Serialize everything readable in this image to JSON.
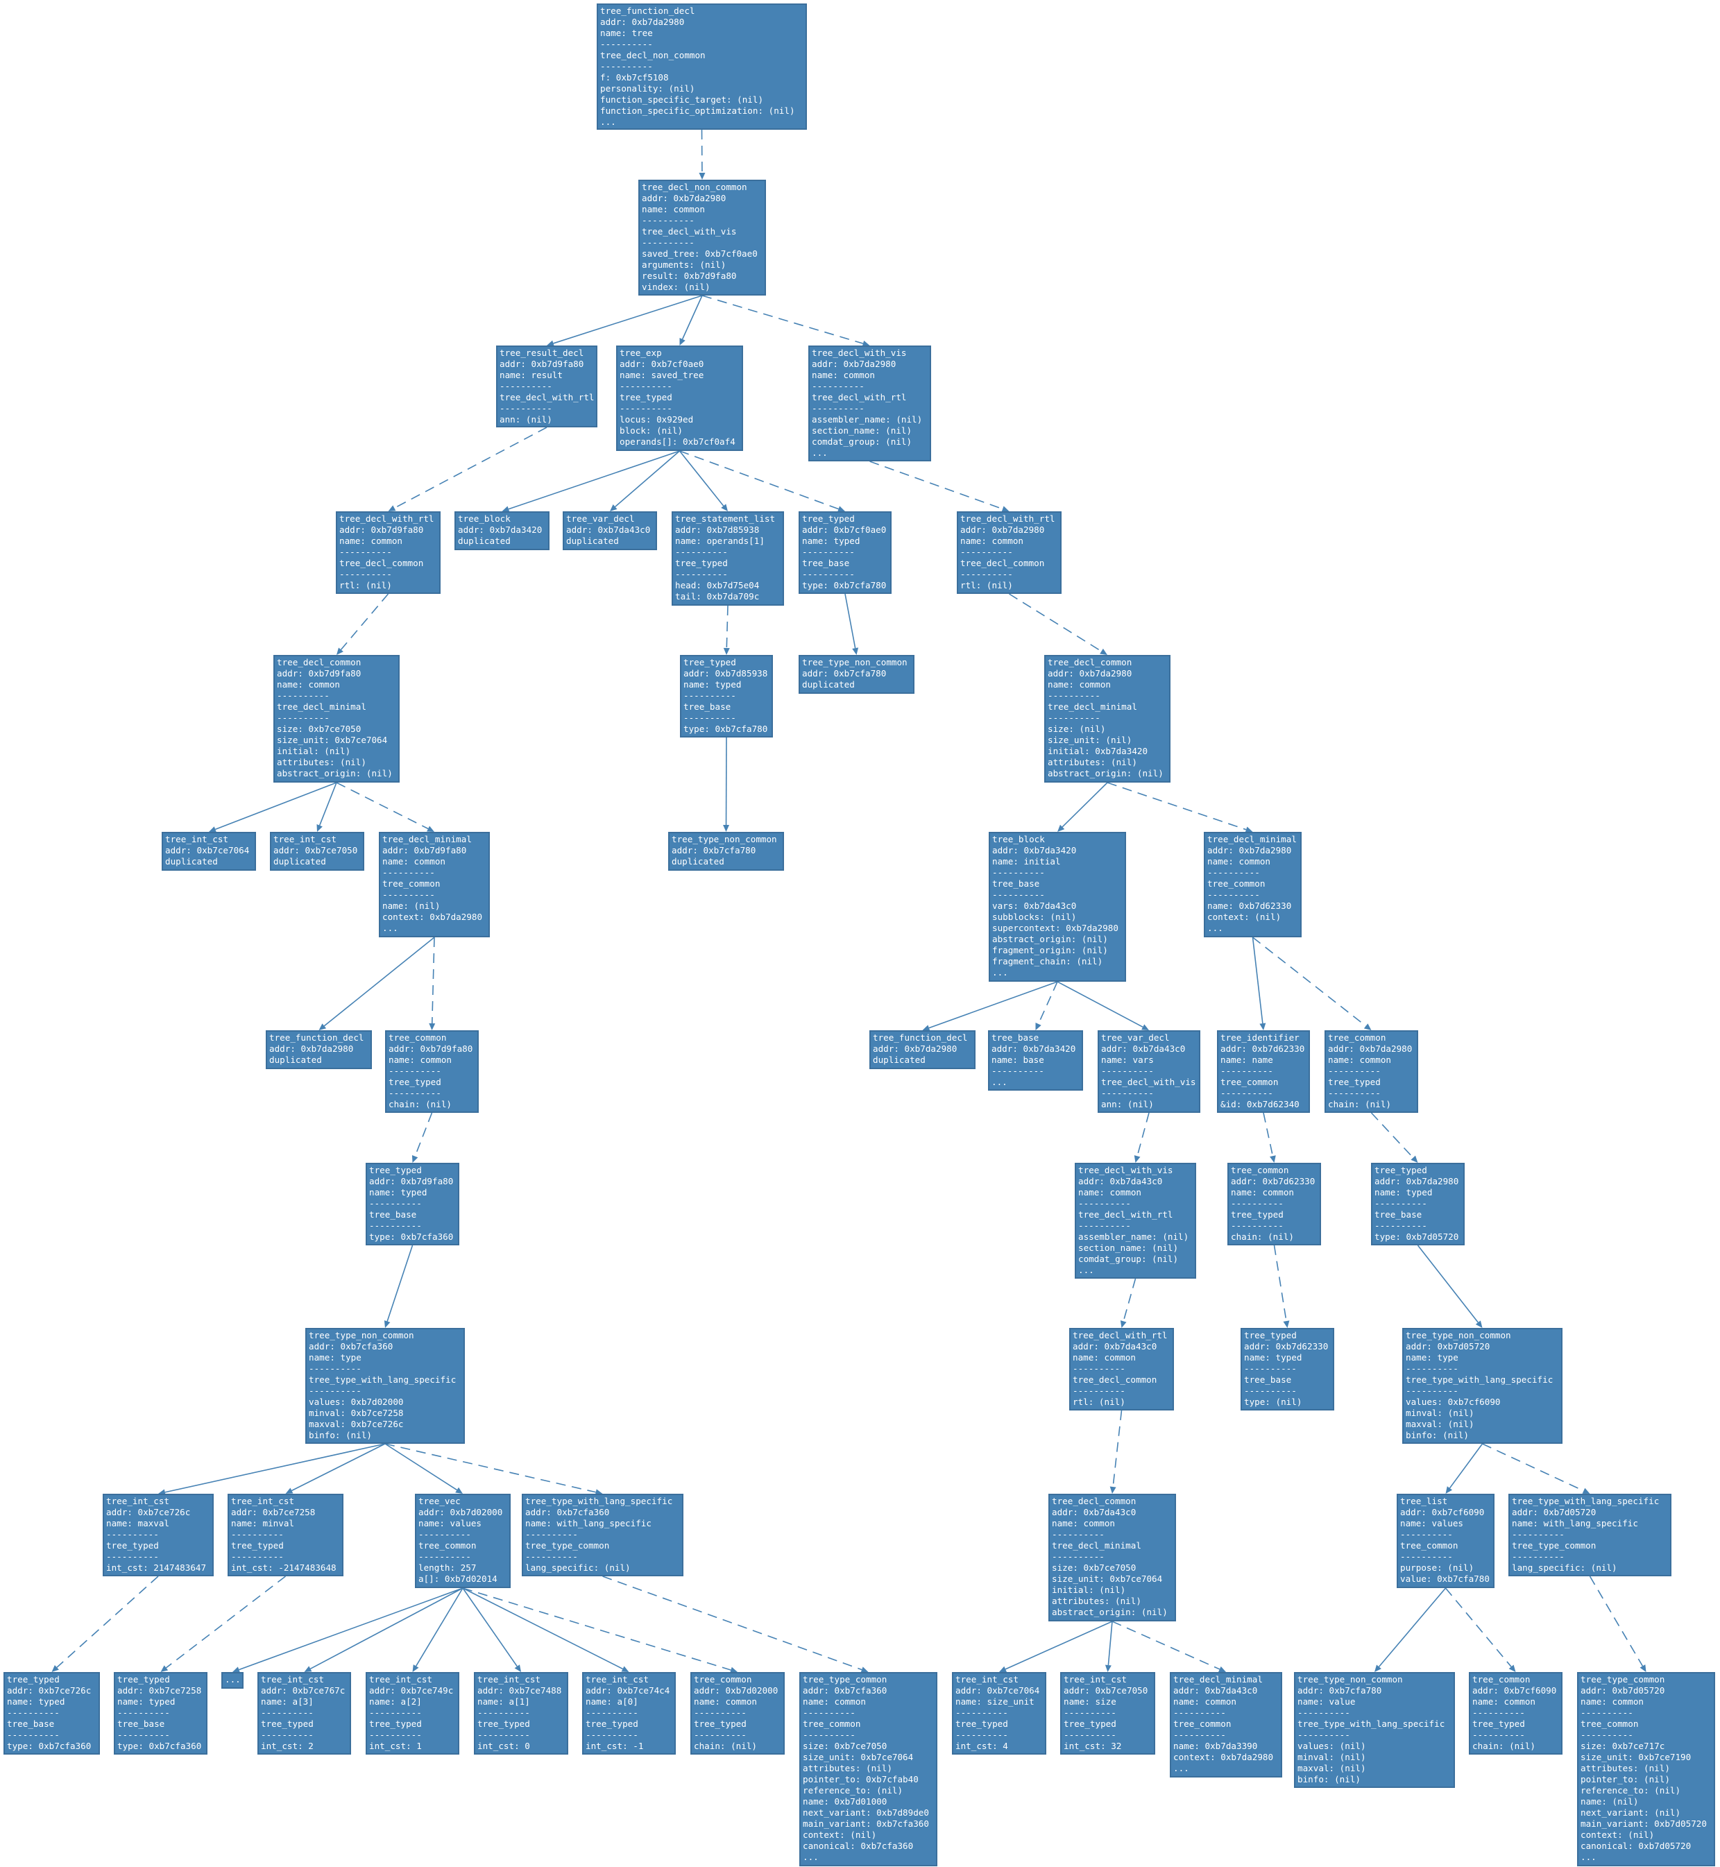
{
  "nodes": [
    {
      "id": "n1",
      "lines": [
        "tree_function_decl",
        "addr: 0xb7da2980",
        "name: tree",
        "----------",
        "tree_decl_non_common",
        "----------",
        "f: 0xb7cf5108",
        "personality: (nil)",
        "function_specific_target: (nil)",
        "function_specific_optimization: (nil)",
        "..."
      ]
    },
    {
      "id": "n2",
      "lines": [
        "tree_decl_non_common",
        "addr: 0xb7da2980",
        "name: common",
        "----------",
        "tree_decl_with_vis",
        "----------",
        "saved_tree: 0xb7cf0ae0",
        "arguments: (nil)",
        "result: 0xb7d9fa80",
        "vindex: (nil)"
      ]
    },
    {
      "id": "n3",
      "lines": [
        "tree_result_decl",
        "addr: 0xb7d9fa80",
        "name: result",
        "----------",
        "tree_decl_with_rtl",
        "----------",
        "ann: (nil)"
      ]
    },
    {
      "id": "n4",
      "lines": [
        "tree_exp",
        "addr: 0xb7cf0ae0",
        "name: saved_tree",
        "----------",
        "tree_typed",
        "----------",
        "locus: 0x929ed",
        "block: (nil)",
        "operands[]: 0xb7cf0af4"
      ]
    },
    {
      "id": "n5",
      "lines": [
        "tree_decl_with_vis",
        "addr: 0xb7da2980",
        "name: common",
        "----------",
        "tree_decl_with_rtl",
        "----------",
        "assembler_name: (nil)",
        "section_name: (nil)",
        "comdat_group: (nil)",
        "..."
      ]
    },
    {
      "id": "n6",
      "lines": [
        "tree_decl_with_rtl",
        "addr: 0xb7d9fa80",
        "name: common",
        "----------",
        "tree_decl_common",
        "----------",
        "rtl: (nil)"
      ]
    },
    {
      "id": "n7",
      "lines": [
        "tree_block",
        "addr: 0xb7da3420",
        "duplicated"
      ]
    },
    {
      "id": "n8",
      "lines": [
        "tree_var_decl",
        "addr: 0xb7da43c0",
        "duplicated"
      ]
    },
    {
      "id": "n9",
      "lines": [
        "tree_statement_list",
        "addr: 0xb7d85938",
        "name: operands[1]",
        "----------",
        "tree_typed",
        "----------",
        "head: 0xb7d75e04",
        "tail: 0xb7da709c"
      ]
    },
    {
      "id": "n10",
      "lines": [
        "tree_typed",
        "addr: 0xb7cf0ae0",
        "name: typed",
        "----------",
        "tree_base",
        "----------",
        "type: 0xb7cfa780"
      ]
    },
    {
      "id": "n11",
      "lines": [
        "tree_decl_with_rtl",
        "addr: 0xb7da2980",
        "name: common",
        "----------",
        "tree_decl_common",
        "----------",
        "rtl: (nil)"
      ]
    },
    {
      "id": "n12",
      "lines": [
        "tree_decl_common",
        "addr: 0xb7d9fa80",
        "name: common",
        "----------",
        "tree_decl_minimal",
        "----------",
        "size: 0xb7ce7050",
        "size_unit: 0xb7ce7064",
        "initial: (nil)",
        "attributes: (nil)",
        "abstract_origin: (nil)"
      ]
    },
    {
      "id": "n13",
      "lines": [
        "tree_typed",
        "addr: 0xb7d85938",
        "name: typed",
        "----------",
        "tree_base",
        "----------",
        "type: 0xb7cfa780"
      ]
    },
    {
      "id": "n14",
      "lines": [
        "tree_type_non_common",
        "addr: 0xb7cfa780",
        "duplicated"
      ]
    },
    {
      "id": "n15",
      "lines": [
        "tree_decl_common",
        "addr: 0xb7da2980",
        "name: common",
        "----------",
        "tree_decl_minimal",
        "----------",
        "size: (nil)",
        "size_unit: (nil)",
        "initial: 0xb7da3420",
        "attributes: (nil)",
        "abstract_origin: (nil)"
      ]
    },
    {
      "id": "n16",
      "lines": [
        "tree_int_cst",
        "addr: 0xb7ce7064",
        "duplicated"
      ]
    },
    {
      "id": "n17",
      "lines": [
        "tree_int_cst",
        "addr: 0xb7ce7050",
        "duplicated"
      ]
    },
    {
      "id": "n18",
      "lines": [
        "tree_decl_minimal",
        "addr: 0xb7d9fa80",
        "name: common",
        "----------",
        "tree_common",
        "----------",
        "name: (nil)",
        "context: 0xb7da2980",
        "..."
      ]
    },
    {
      "id": "n19",
      "lines": [
        "tree_type_non_common",
        "addr: 0xb7cfa780",
        "duplicated"
      ]
    },
    {
      "id": "n20",
      "lines": [
        "tree_block",
        "addr: 0xb7da3420",
        "name: initial",
        "----------",
        "tree_base",
        "----------",
        "vars: 0xb7da43c0",
        "subblocks: (nil)",
        "supercontext: 0xb7da2980",
        "abstract_origin: (nil)",
        "fragment_origin: (nil)",
        "fragment_chain: (nil)",
        "..."
      ]
    },
    {
      "id": "n21",
      "lines": [
        "tree_decl_minimal",
        "addr: 0xb7da2980",
        "name: common",
        "----------",
        "tree_common",
        "----------",
        "name: 0xb7d62330",
        "context: (nil)",
        "..."
      ]
    },
    {
      "id": "n22",
      "lines": [
        "tree_function_decl",
        "addr: 0xb7da2980",
        "duplicated"
      ]
    },
    {
      "id": "n23",
      "lines": [
        "tree_common",
        "addr: 0xb7d9fa80",
        "name: common",
        "----------",
        "tree_typed",
        "----------",
        "chain: (nil)"
      ]
    },
    {
      "id": "n24",
      "lines": [
        "tree_function_decl",
        "addr: 0xb7da2980",
        "duplicated"
      ]
    },
    {
      "id": "n25",
      "lines": [
        "tree_base",
        "addr: 0xb7da3420",
        "name: base",
        "----------",
        "..."
      ]
    },
    {
      "id": "n26",
      "lines": [
        "tree_var_decl",
        "addr: 0xb7da43c0",
        "name: vars",
        "----------",
        "tree_decl_with_vis",
        "----------",
        "ann: (nil)"
      ]
    },
    {
      "id": "n27",
      "lines": [
        "tree_identifier",
        "addr: 0xb7d62330",
        "name: name",
        "----------",
        "tree_common",
        "----------",
        "&id: 0xb7d62340"
      ]
    },
    {
      "id": "n28",
      "lines": [
        "tree_common",
        "addr: 0xb7da2980",
        "name: common",
        "----------",
        "tree_typed",
        "----------",
        "chain: (nil)"
      ]
    },
    {
      "id": "n29",
      "lines": [
        "tree_typed",
        "addr: 0xb7d9fa80",
        "name: typed",
        "----------",
        "tree_base",
        "----------",
        "type: 0xb7cfa360"
      ]
    },
    {
      "id": "n30",
      "lines": [
        "tree_decl_with_vis",
        "addr: 0xb7da43c0",
        "name: common",
        "----------",
        "tree_decl_with_rtl",
        "----------",
        "assembler_name: (nil)",
        "section_name: (nil)",
        "comdat_group: (nil)",
        "..."
      ]
    },
    {
      "id": "n31",
      "lines": [
        "tree_common",
        "addr: 0xb7d62330",
        "name: common",
        "----------",
        "tree_typed",
        "----------",
        "chain: (nil)"
      ]
    },
    {
      "id": "n32",
      "lines": [
        "tree_typed",
        "addr: 0xb7da2980",
        "name: typed",
        "----------",
        "tree_base",
        "----------",
        "type: 0xb7d05720"
      ]
    },
    {
      "id": "n33",
      "lines": [
        "tree_type_non_common",
        "addr: 0xb7cfa360",
        "name: type",
        "----------",
        "tree_type_with_lang_specific",
        "----------",
        "values: 0xb7d02000",
        "minval: 0xb7ce7258",
        "maxval: 0xb7ce726c",
        "binfo: (nil)"
      ]
    },
    {
      "id": "n34",
      "lines": [
        "tree_decl_with_rtl",
        "addr: 0xb7da43c0",
        "name: common",
        "----------",
        "tree_decl_common",
        "----------",
        "rtl: (nil)"
      ]
    },
    {
      "id": "n35",
      "lines": [
        "tree_typed",
        "addr: 0xb7d62330",
        "name: typed",
        "----------",
        "tree_base",
        "----------",
        "type: (nil)"
      ]
    },
    {
      "id": "n36",
      "lines": [
        "tree_type_non_common",
        "addr: 0xb7d05720",
        "name: type",
        "----------",
        "tree_type_with_lang_specific",
        "----------",
        "values: 0xb7cf6090",
        "minval: (nil)",
        "maxval: (nil)",
        "binfo: (nil)"
      ]
    },
    {
      "id": "n37",
      "lines": [
        "tree_int_cst",
        "addr: 0xb7ce726c",
        "name: maxval",
        "----------",
        "tree_typed",
        "----------",
        "int_cst: 2147483647"
      ]
    },
    {
      "id": "n38",
      "lines": [
        "tree_int_cst",
        "addr: 0xb7ce7258",
        "name: minval",
        "----------",
        "tree_typed",
        "----------",
        "int_cst: -2147483648"
      ]
    },
    {
      "id": "n39",
      "lines": [
        "tree_vec",
        "addr: 0xb7d02000",
        "name: values",
        "----------",
        "tree_common",
        "----------",
        "length: 257",
        "a[]: 0xb7d02014"
      ]
    },
    {
      "id": "n40",
      "lines": [
        "tree_type_with_lang_specific",
        "addr: 0xb7cfa360",
        "name: with_lang_specific",
        "----------",
        "tree_type_common",
        "----------",
        "lang_specific: (nil)"
      ]
    },
    {
      "id": "n41",
      "lines": [
        "tree_decl_common",
        "addr: 0xb7da43c0",
        "name: common",
        "----------",
        "tree_decl_minimal",
        "----------",
        "size: 0xb7ce7050",
        "size_unit: 0xb7ce7064",
        "initial: (nil)",
        "attributes: (nil)",
        "abstract_origin: (nil)"
      ]
    },
    {
      "id": "n42",
      "lines": [
        "tree_list",
        "addr: 0xb7cf6090",
        "name: values",
        "----------",
        "tree_common",
        "----------",
        "purpose: (nil)",
        "value: 0xb7cfa780"
      ]
    },
    {
      "id": "n43",
      "lines": [
        "tree_type_with_lang_specific",
        "addr: 0xb7d05720",
        "name: with_lang_specific",
        "----------",
        "tree_type_common",
        "----------",
        "lang_specific: (nil)"
      ]
    },
    {
      "id": "n44",
      "lines": [
        "tree_typed",
        "addr: 0xb7ce726c",
        "name: typed",
        "----------",
        "tree_base",
        "----------",
        "type: 0xb7cfa360"
      ]
    },
    {
      "id": "n45",
      "lines": [
        "tree_typed",
        "addr: 0xb7ce7258",
        "name: typed",
        "----------",
        "tree_base",
        "----------",
        "type: 0xb7cfa360"
      ]
    },
    {
      "id": "n46",
      "lines": [
        "..."
      ]
    },
    {
      "id": "n47",
      "lines": [
        "tree_int_cst",
        "addr: 0xb7ce767c",
        "name: a[3]",
        "----------",
        "tree_typed",
        "----------",
        "int_cst: 2"
      ]
    },
    {
      "id": "n48",
      "lines": [
        "tree_int_cst",
        "addr: 0xb7ce749c",
        "name: a[2]",
        "----------",
        "tree_typed",
        "----------",
        "int_cst: 1"
      ]
    },
    {
      "id": "n49",
      "lines": [
        "tree_int_cst",
        "addr: 0xb7ce7488",
        "name: a[1]",
        "----------",
        "tree_typed",
        "----------",
        "int_cst: 0"
      ]
    },
    {
      "id": "n50",
      "lines": [
        "tree_int_cst",
        "addr: 0xb7ce74c4",
        "name: a[0]",
        "----------",
        "tree_typed",
        "----------",
        "int_cst: -1"
      ]
    },
    {
      "id": "n51",
      "lines": [
        "tree_common",
        "addr: 0xb7d02000",
        "name: common",
        "----------",
        "tree_typed",
        "----------",
        "chain: (nil)"
      ]
    },
    {
      "id": "n52",
      "lines": [
        "tree_type_common",
        "addr: 0xb7cfa360",
        "name: common",
        "----------",
        "tree_common",
        "----------",
        "size: 0xb7ce7050",
        "size_unit: 0xb7ce7064",
        "attributes: (nil)",
        "pointer_to: 0xb7cfab40",
        "reference_to: (nil)",
        "name: 0xb7d01000",
        "next_variant: 0xb7d89de0",
        "main_variant: 0xb7cfa360",
        "context: (nil)",
        "canonical: 0xb7cfa360",
        "..."
      ]
    },
    {
      "id": "n53",
      "lines": [
        "tree_int_cst",
        "addr: 0xb7ce7064",
        "name: size_unit",
        "----------",
        "tree_typed",
        "----------",
        "int_cst: 4"
      ]
    },
    {
      "id": "n54",
      "lines": [
        "tree_int_cst",
        "addr: 0xb7ce7050",
        "name: size",
        "----------",
        "tree_typed",
        "----------",
        "int_cst: 32"
      ]
    },
    {
      "id": "n55",
      "lines": [
        "tree_decl_minimal",
        "addr: 0xb7da43c0",
        "name: common",
        "----------",
        "tree_common",
        "----------",
        "name: 0xb7da3390",
        "context: 0xb7da2980",
        "..."
      ]
    },
    {
      "id": "n56",
      "lines": [
        "tree_type_non_common",
        "addr: 0xb7cfa780",
        "name: value",
        "----------",
        "tree_type_with_lang_specific",
        "----------",
        "values: (nil)",
        "minval: (nil)",
        "maxval: (nil)",
        "binfo: (nil)"
      ]
    },
    {
      "id": "n57",
      "lines": [
        "tree_common",
        "addr: 0xb7cf6090",
        "name: common",
        "----------",
        "tree_typed",
        "----------",
        "chain: (nil)"
      ]
    },
    {
      "id": "n58",
      "lines": [
        "tree_type_common",
        "addr: 0xb7d05720",
        "name: common",
        "----------",
        "tree_common",
        "----------",
        "size: 0xb7ce717c",
        "size_unit: 0xb7ce7190",
        "attributes: (nil)",
        "pointer_to: (nil)",
        "reference_to: (nil)",
        "name: (nil)",
        "next_variant: (nil)",
        "main_variant: 0xb7d05720",
        "context: (nil)",
        "canonical: 0xb7d05720",
        "..."
      ]
    }
  ],
  "edges": [
    {
      "from": "n1",
      "to": "n2",
      "style": "dashed"
    },
    {
      "from": "n2",
      "to": "n3",
      "style": "solid"
    },
    {
      "from": "n2",
      "to": "n4",
      "style": "solid"
    },
    {
      "from": "n2",
      "to": "n5",
      "style": "dashed"
    },
    {
      "from": "n3",
      "to": "n6",
      "style": "dashed"
    },
    {
      "from": "n4",
      "to": "n7",
      "style": "solid"
    },
    {
      "from": "n4",
      "to": "n8",
      "style": "solid"
    },
    {
      "from": "n4",
      "to": "n9",
      "style": "solid"
    },
    {
      "from": "n4",
      "to": "n10",
      "style": "dashed"
    },
    {
      "from": "n5",
      "to": "n11",
      "style": "dashed"
    },
    {
      "from": "n6",
      "to": "n12",
      "style": "dashed"
    },
    {
      "from": "n9",
      "to": "n13",
      "style": "dashed"
    },
    {
      "from": "n10",
      "to": "n14",
      "style": "solid"
    },
    {
      "from": "n11",
      "to": "n15",
      "style": "dashed"
    },
    {
      "from": "n12",
      "to": "n16",
      "style": "solid"
    },
    {
      "from": "n12",
      "to": "n17",
      "style": "solid"
    },
    {
      "from": "n12",
      "to": "n18",
      "style": "dashed"
    },
    {
      "from": "n13",
      "to": "n19",
      "style": "solid"
    },
    {
      "from": "n15",
      "to": "n20",
      "style": "solid"
    },
    {
      "from": "n15",
      "to": "n21",
      "style": "dashed"
    },
    {
      "from": "n18",
      "to": "n22",
      "style": "solid"
    },
    {
      "from": "n18",
      "to": "n23",
      "style": "dashed"
    },
    {
      "from": "n20",
      "to": "n24",
      "style": "solid"
    },
    {
      "from": "n20",
      "to": "n25",
      "style": "dashed"
    },
    {
      "from": "n20",
      "to": "n26",
      "style": "solid"
    },
    {
      "from": "n21",
      "to": "n27",
      "style": "solid"
    },
    {
      "from": "n21",
      "to": "n28",
      "style": "dashed"
    },
    {
      "from": "n23",
      "to": "n29",
      "style": "dashed"
    },
    {
      "from": "n26",
      "to": "n30",
      "style": "dashed"
    },
    {
      "from": "n27",
      "to": "n31",
      "style": "dashed"
    },
    {
      "from": "n28",
      "to": "n32",
      "style": "dashed"
    },
    {
      "from": "n29",
      "to": "n33",
      "style": "solid"
    },
    {
      "from": "n30",
      "to": "n34",
      "style": "dashed"
    },
    {
      "from": "n31",
      "to": "n35",
      "style": "dashed"
    },
    {
      "from": "n32",
      "to": "n36",
      "style": "solid"
    },
    {
      "from": "n33",
      "to": "n37",
      "style": "solid"
    },
    {
      "from": "n33",
      "to": "n38",
      "style": "solid"
    },
    {
      "from": "n33",
      "to": "n39",
      "style": "solid"
    },
    {
      "from": "n33",
      "to": "n40",
      "style": "dashed"
    },
    {
      "from": "n34",
      "to": "n41",
      "style": "dashed"
    },
    {
      "from": "n36",
      "to": "n42",
      "style": "solid"
    },
    {
      "from": "n36",
      "to": "n43",
      "style": "dashed"
    },
    {
      "from": "n37",
      "to": "n44",
      "style": "dashed"
    },
    {
      "from": "n38",
      "to": "n45",
      "style": "dashed"
    },
    {
      "from": "n39",
      "to": "n46",
      "style": "solid"
    },
    {
      "from": "n39",
      "to": "n47",
      "style": "solid"
    },
    {
      "from": "n39",
      "to": "n48",
      "style": "solid"
    },
    {
      "from": "n39",
      "to": "n49",
      "style": "solid"
    },
    {
      "from": "n39",
      "to": "n50",
      "style": "solid"
    },
    {
      "from": "n39",
      "to": "n51",
      "style": "dashed"
    },
    {
      "from": "n40",
      "to": "n52",
      "style": "dashed"
    },
    {
      "from": "n41",
      "to": "n53",
      "style": "solid"
    },
    {
      "from": "n41",
      "to": "n54",
      "style": "solid"
    },
    {
      "from": "n41",
      "to": "n55",
      "style": "dashed"
    },
    {
      "from": "n42",
      "to": "n56",
      "style": "solid"
    },
    {
      "from": "n42",
      "to": "n57",
      "style": "dashed"
    },
    {
      "from": "n43",
      "to": "n58",
      "style": "dashed"
    }
  ],
  "colors": {
    "node_fill": "#4682b4",
    "node_text": "#ffffff",
    "edge": "#4682b4"
  }
}
